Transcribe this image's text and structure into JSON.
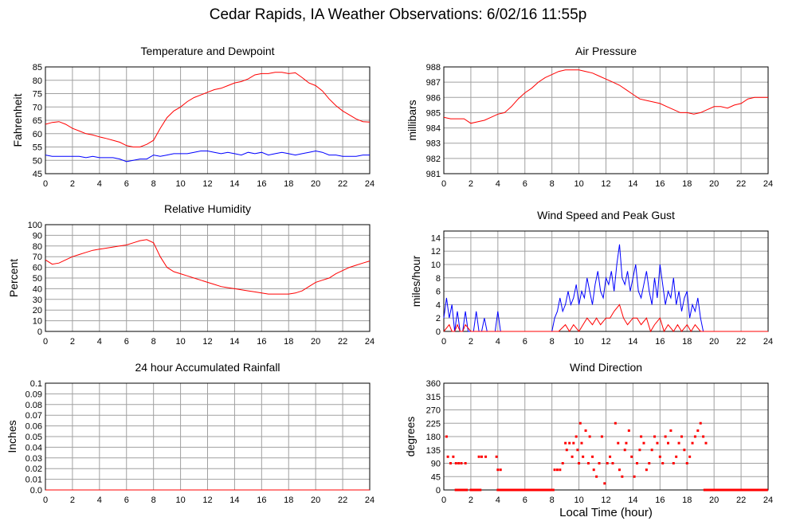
{
  "title": "Cedar Rapids, IA Weather Observations: 6/02/16 11:55p",
  "shared_xlabel": "Local Time (hour)",
  "colors": {
    "red": "#ff0000",
    "blue": "#0000ff",
    "grid": "#a0a0a0"
  },
  "chart_data": [
    {
      "id": "temp",
      "type": "line",
      "title": "Temperature and Dewpoint",
      "ylabel": "Fahrenheit",
      "xlabel": "",
      "xlim": [
        0,
        24
      ],
      "ylim": [
        45,
        85
      ],
      "xticks": [
        0,
        2,
        4,
        6,
        8,
        10,
        12,
        14,
        16,
        18,
        20,
        22,
        24
      ],
      "yticks": [
        45,
        50,
        55,
        60,
        65,
        70,
        75,
        80,
        85
      ],
      "series": [
        {
          "color": "#ff0000",
          "x": [
            0,
            0.5,
            1,
            1.5,
            2,
            2.5,
            3,
            3.5,
            4,
            4.5,
            5,
            5.5,
            6,
            6.5,
            7,
            7.5,
            8,
            8.5,
            9,
            9.5,
            10,
            10.5,
            11,
            11.5,
            12,
            12.5,
            13,
            13.5,
            14,
            14.5,
            15,
            15.5,
            16,
            16.5,
            17,
            17.5,
            18,
            18.5,
            19,
            19.5,
            20,
            20.5,
            21,
            21.5,
            22,
            22.5,
            23,
            23.5,
            24
          ],
          "y": [
            63.5,
            64.2,
            64.5,
            63.5,
            62,
            61,
            60,
            59.5,
            58.8,
            58.2,
            57.5,
            56.8,
            55.5,
            55,
            55,
            56,
            57.5,
            62,
            66,
            68.5,
            70,
            72,
            73.5,
            74.5,
            75.5,
            76.5,
            77,
            78,
            79,
            79.5,
            80.5,
            82,
            82.5,
            82.5,
            83,
            83,
            82.5,
            82.8,
            81,
            79,
            78,
            76,
            73,
            70.5,
            68.5,
            67,
            65.5,
            64.5,
            64.3
          ]
        },
        {
          "color": "#0000ff",
          "x": [
            0,
            0.5,
            1,
            1.5,
            2,
            2.5,
            3,
            3.5,
            4,
            4.5,
            5,
            5.5,
            6,
            6.5,
            7,
            7.5,
            8,
            8.5,
            9,
            9.5,
            10,
            10.5,
            11,
            11.5,
            12,
            12.5,
            13,
            13.5,
            14,
            14.5,
            15,
            15.5,
            16,
            16.5,
            17,
            17.5,
            18,
            18.5,
            19,
            19.5,
            20,
            20.5,
            21,
            21.5,
            22,
            22.5,
            23,
            23.5,
            24
          ],
          "y": [
            52,
            51.5,
            51.5,
            51.5,
            51.5,
            51.5,
            51,
            51.5,
            51,
            51,
            51,
            50.5,
            49.5,
            50,
            50.5,
            50.5,
            52,
            51.5,
            52,
            52.5,
            52.5,
            52.5,
            53,
            53.5,
            53.5,
            53,
            52.5,
            53,
            52.5,
            52,
            53,
            52.5,
            53,
            52,
            52.5,
            53,
            52.5,
            52,
            52.5,
            53,
            53.5,
            53,
            52,
            52,
            51.5,
            51.5,
            51.5,
            52,
            52
          ]
        }
      ]
    },
    {
      "id": "pressure",
      "type": "line",
      "title": "Air Pressure",
      "ylabel": "millibars",
      "xlabel": "",
      "xlim": [
        0,
        24
      ],
      "ylim": [
        981,
        988
      ],
      "xticks": [
        0,
        2,
        4,
        6,
        8,
        10,
        12,
        14,
        16,
        18,
        20,
        22,
        24
      ],
      "yticks": [
        981,
        982,
        983,
        984,
        985,
        986,
        987,
        988
      ],
      "series": [
        {
          "color": "#ff0000",
          "x": [
            0,
            0.5,
            1,
            1.5,
            2,
            2.5,
            3,
            3.5,
            4,
            4.5,
            5,
            5.5,
            6,
            6.5,
            7,
            7.5,
            8,
            8.5,
            9,
            9.5,
            10,
            10.5,
            11,
            11.5,
            12,
            12.5,
            13,
            13.5,
            14,
            14.5,
            15,
            15.5,
            16,
            16.5,
            17,
            17.5,
            18,
            18.5,
            19,
            19.5,
            20,
            20.5,
            21,
            21.5,
            22,
            22.5,
            23,
            23.5,
            24
          ],
          "y": [
            984.7,
            984.6,
            984.6,
            984.6,
            984.3,
            984.4,
            984.5,
            984.7,
            984.9,
            985,
            985.4,
            985.9,
            986.3,
            986.6,
            987,
            987.3,
            987.5,
            987.7,
            987.8,
            987.8,
            987.8,
            987.7,
            987.6,
            987.4,
            987.2,
            987,
            986.8,
            986.5,
            986.2,
            985.9,
            985.8,
            985.7,
            985.6,
            985.4,
            985.2,
            985,
            985,
            984.9,
            985,
            985.2,
            985.4,
            985.4,
            985.3,
            985.5,
            985.6,
            985.9,
            986,
            986,
            986
          ]
        }
      ]
    },
    {
      "id": "humidity",
      "type": "line",
      "title": "Relative Humidity",
      "ylabel": "Percent",
      "xlabel": "",
      "xlim": [
        0,
        24
      ],
      "ylim": [
        0,
        100
      ],
      "xticks": [
        0,
        2,
        4,
        6,
        8,
        10,
        12,
        14,
        16,
        18,
        20,
        22,
        24
      ],
      "yticks": [
        0,
        10,
        20,
        30,
        40,
        50,
        60,
        70,
        80,
        90,
        100
      ],
      "series": [
        {
          "color": "#ff0000",
          "x": [
            0,
            0.5,
            1,
            1.5,
            2,
            2.5,
            3,
            3.5,
            4,
            4.5,
            5,
            5.5,
            6,
            6.5,
            7,
            7.5,
            8,
            8.5,
            9,
            9.5,
            10,
            10.5,
            11,
            11.5,
            12,
            12.5,
            13,
            13.5,
            14,
            14.5,
            15,
            15.5,
            16,
            16.5,
            17,
            17.5,
            18,
            18.5,
            19,
            19.5,
            20,
            20.5,
            21,
            21.5,
            22,
            22.5,
            23,
            23.5,
            24
          ],
          "y": [
            67,
            63,
            64,
            67,
            70,
            72,
            74,
            76,
            77,
            78,
            79,
            80,
            81,
            83,
            85,
            86,
            83,
            70,
            60,
            56,
            54,
            52,
            50,
            48,
            46,
            44,
            42,
            41,
            40,
            39,
            38,
            37,
            36,
            35,
            35,
            35,
            35,
            36,
            38,
            42,
            46,
            48,
            50,
            54,
            57,
            60,
            62,
            64,
            66
          ]
        }
      ]
    },
    {
      "id": "wind",
      "type": "line",
      "title": "Wind Speed and Peak Gust",
      "ylabel": "miles/hour",
      "xlabel": "",
      "xlim": [
        0,
        24
      ],
      "ylim": [
        0,
        15
      ],
      "xticks": [
        0,
        2,
        4,
        6,
        8,
        10,
        12,
        14,
        16,
        18,
        20,
        22,
        24
      ],
      "yticks": [
        0,
        2,
        4,
        6,
        8,
        10,
        12,
        14
      ],
      "series": [
        {
          "color": "#0000ff",
          "x": [
            0,
            0.2,
            0.4,
            0.6,
            0.8,
            1,
            1.2,
            1.4,
            1.6,
            1.8,
            2,
            2.2,
            2.4,
            2.6,
            2.8,
            3,
            3.2,
            3.4,
            3.6,
            3.8,
            4,
            4.2,
            4.4,
            6,
            8,
            8.2,
            8.4,
            8.6,
            8.8,
            9,
            9.2,
            9.4,
            9.6,
            9.8,
            10,
            10.2,
            10.4,
            10.6,
            10.8,
            11,
            11.2,
            11.4,
            11.6,
            11.8,
            12,
            12.2,
            12.4,
            12.6,
            12.8,
            13,
            13.2,
            13.4,
            13.6,
            13.8,
            14,
            14.2,
            14.4,
            14.6,
            14.8,
            15,
            15.2,
            15.4,
            15.6,
            15.8,
            16,
            16.2,
            16.4,
            16.6,
            16.8,
            17,
            17.2,
            17.4,
            17.6,
            17.8,
            18,
            18.2,
            18.4,
            18.6,
            18.8,
            19,
            19.2,
            19.4,
            22,
            24
          ],
          "y": [
            2,
            5,
            2,
            4,
            0,
            3,
            0,
            0,
            3,
            0,
            0,
            0,
            3,
            0,
            0,
            2,
            0,
            0,
            0,
            0,
            3,
            0,
            0,
            0,
            0,
            2,
            3,
            5,
            3,
            4,
            6,
            4,
            5,
            7,
            4,
            6,
            5,
            8,
            6,
            4,
            7,
            9,
            6,
            5,
            8,
            7,
            9,
            6,
            10,
            13,
            8,
            7,
            9,
            6,
            8,
            10,
            6,
            5,
            7,
            9,
            6,
            4,
            8,
            5,
            10,
            7,
            4,
            6,
            5,
            8,
            4,
            6,
            3,
            5,
            6,
            2,
            4,
            3,
            5,
            2,
            0,
            0,
            0,
            0
          ]
        },
        {
          "color": "#ff0000",
          "x": [
            0,
            0.4,
            0.6,
            0.8,
            1,
            1.2,
            1.4,
            1.6,
            2,
            3,
            4,
            6,
            8,
            8.5,
            9,
            9.3,
            9.6,
            10,
            10.3,
            10.6,
            11,
            11.3,
            11.6,
            12,
            12.3,
            12.6,
            13,
            13.3,
            13.6,
            14,
            14.3,
            14.6,
            15,
            15.3,
            15.6,
            16,
            16.3,
            16.6,
            17,
            17.3,
            17.6,
            18,
            18.3,
            18.6,
            19,
            19.5,
            24
          ],
          "y": [
            0,
            1,
            0,
            0,
            1,
            0,
            0,
            1,
            0,
            0,
            0,
            0,
            0,
            0,
            1,
            0,
            1,
            0,
            1,
            2,
            1,
            2,
            1,
            2,
            2,
            3,
            4,
            2,
            1,
            2,
            2,
            1,
            2,
            0,
            1,
            2,
            0,
            1,
            0,
            1,
            0,
            1,
            0,
            1,
            0,
            0,
            0
          ]
        }
      ]
    },
    {
      "id": "rain",
      "type": "line",
      "title": "24 hour Accumulated Rainfall",
      "ylabel": "Inches",
      "xlabel": "",
      "xlim": [
        0,
        24
      ],
      "ylim": [
        0,
        0.1
      ],
      "xticks": [
        0,
        2,
        4,
        6,
        8,
        10,
        12,
        14,
        16,
        18,
        20,
        22,
        24
      ],
      "yticks": [
        0.0,
        0.01,
        0.02,
        0.03,
        0.04,
        0.05,
        0.06,
        0.07,
        0.08,
        0.09,
        0.1
      ],
      "ytick_labels": [
        "0.0",
        "0.01",
        "0.02",
        "0.03",
        "0.04",
        "0.05",
        "0.06",
        "0.07",
        "0.08",
        "0.09",
        "0.1"
      ],
      "series": [
        {
          "color": "#ff0000",
          "x": [
            0,
            24
          ],
          "y": [
            0,
            0
          ]
        }
      ]
    },
    {
      "id": "direction",
      "type": "scatter",
      "title": "Wind Direction",
      "ylabel": "degrees",
      "xlabel": "Local Time (hour)",
      "xlim": [
        0,
        24
      ],
      "ylim": [
        0,
        360
      ],
      "xticks": [
        0,
        2,
        4,
        6,
        8,
        10,
        12,
        14,
        16,
        18,
        20,
        22,
        24
      ],
      "yticks": [
        0,
        45,
        90,
        135,
        180,
        225,
        270,
        315,
        360
      ],
      "series": [
        {
          "color": "#ff0000",
          "x": [
            0.2,
            0.3,
            0.5,
            0.7,
            0.9,
            1.1,
            1.3,
            1.6,
            0.9,
            1.2,
            2.1,
            2.4,
            2.6,
            2.8,
            3.1,
            3.9,
            4.0,
            4.2,
            8.2,
            8.4,
            8.6,
            8.8,
            9.0,
            9.1,
            9.3,
            9.5,
            9.6,
            9.8,
            9.9,
            10.0,
            10.1,
            10.2,
            10.3,
            10.5,
            10.7,
            10.8,
            11.0,
            11.1,
            11.3,
            11.5,
            11.7,
            11.9,
            12.1,
            12.3,
            12.5,
            12.7,
            12.9,
            13.0,
            13.2,
            13.4,
            13.5,
            13.7,
            13.9,
            14.1,
            14.3,
            14.5,
            14.6,
            14.8,
            15.0,
            15.2,
            15.4,
            15.6,
            15.8,
            16.0,
            16.2,
            16.4,
            16.6,
            16.8,
            17.0,
            17.2,
            17.4,
            17.6,
            17.8,
            18.0,
            18.2,
            18.4,
            18.6,
            18.8,
            19.0,
            19.2,
            19.4
          ],
          "y": [
            180,
            112,
            90,
            112,
            90,
            90,
            90,
            90,
            0,
            0,
            0,
            0,
            112,
            112,
            112,
            112,
            68,
            68,
            68,
            68,
            68,
            90,
            158,
            135,
            158,
            112,
            158,
            180,
            135,
            90,
            225,
            158,
            112,
            200,
            90,
            180,
            112,
            68,
            45,
            90,
            180,
            22,
            90,
            112,
            90,
            225,
            158,
            68,
            45,
            135,
            158,
            200,
            112,
            45,
            90,
            135,
            180,
            158,
            68,
            90,
            135,
            180,
            158,
            112,
            90,
            180,
            158,
            200,
            90,
            112,
            158,
            180,
            135,
            90,
            112,
            158,
            180,
            200,
            225,
            180,
            158
          ]
        }
      ]
    }
  ]
}
